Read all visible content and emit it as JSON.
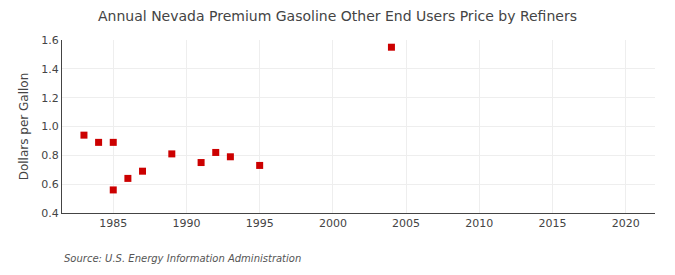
{
  "chart_data": {
    "type": "scatter",
    "title": "Annual Nevada Premium Gasoline Other End Users Price by Refiners",
    "ylabel": "Dollars per Gallon",
    "annotations": [
      "Source: U.S. Energy Information Administration"
    ],
    "x": [
      1983,
      1984,
      1985,
      1985,
      1986,
      1987,
      1989,
      1991,
      1992,
      1993,
      1995,
      2004
    ],
    "values": [
      0.94,
      0.89,
      0.89,
      0.56,
      0.64,
      0.69,
      0.81,
      0.75,
      0.82,
      0.79,
      0.73,
      1.55
    ],
    "color": "#cc0000",
    "marker": "square",
    "xlim": [
      1981.5,
      2022
    ],
    "ylim": [
      0.4,
      1.6
    ],
    "xticks": [
      1985,
      1990,
      1995,
      2000,
      2005,
      2010,
      2015,
      2020
    ],
    "yticks": [
      0.4,
      0.6,
      0.8,
      {
        "value": 1,
        "label": "1.0"
      },
      1.2,
      1.4,
      1.6
    ],
    "grid": true
  }
}
